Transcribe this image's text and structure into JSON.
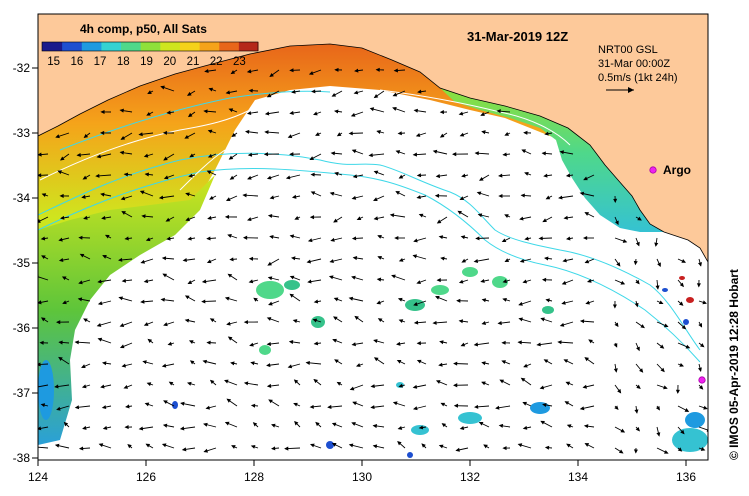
{
  "title": "4h comp, p50, All Sats",
  "date_label": "31-Mar-2019 12Z",
  "current_product": {
    "name": "NRT00 GSL",
    "time": "31-Mar 00:00Z",
    "scale": "0.5m/s (1kt 24h)"
  },
  "argo_label": "Argo",
  "credit": "© IMOS 05-Apr-2019 12:28 Hobart",
  "colorbar": {
    "tick_labels": [
      "15",
      "16",
      "17",
      "18",
      "19",
      "20",
      "21",
      "22",
      "23"
    ],
    "min": 14.5,
    "max": 23.8,
    "colors": [
      "#1a1a8c",
      "#1d4fd0",
      "#1e9ae0",
      "#35d2d2",
      "#4fd88a",
      "#8fe03a",
      "#cfe51e",
      "#f5d21a",
      "#f5a31a",
      "#e8661a",
      "#b5281a"
    ]
  },
  "axes": {
    "lon_ticks": [
      "124",
      "126",
      "128",
      "130",
      "132",
      "134",
      "136"
    ],
    "lat_ticks": [
      "-32",
      "-33",
      "-34",
      "-35",
      "-36",
      "-37",
      "-38"
    ]
  },
  "colors": {
    "land": "#fdc99a",
    "no_data": "#ffffff",
    "argo_marker": "#ee22ee"
  }
}
